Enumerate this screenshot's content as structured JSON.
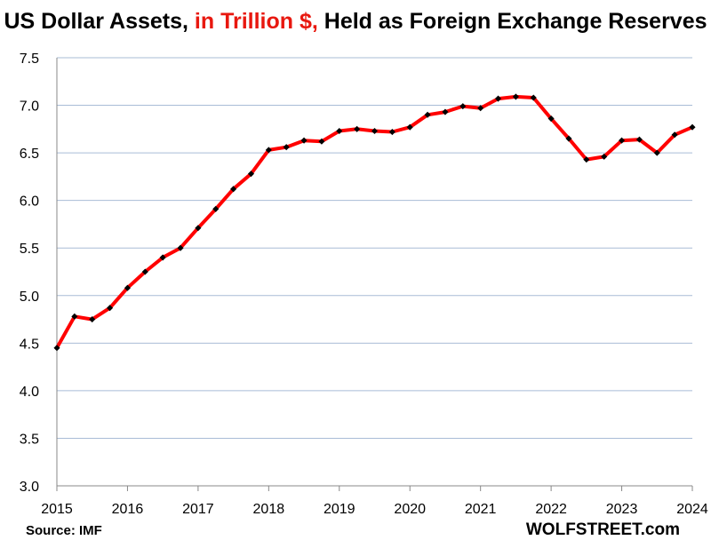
{
  "title": {
    "part1": "US Dollar Assets, ",
    "part2": "in Trillion $,",
    "part3": " Held as Foreign Exchange Reserves",
    "accent_color": "#e8180f"
  },
  "source": "Source: IMF",
  "brand": "WOLFSTREET.com",
  "chart_data": {
    "type": "line",
    "title": "US Dollar Assets, in Trillion $, Held as Foreign Exchange Reserves",
    "xlabel": "",
    "ylabel": "",
    "xlim": [
      2015,
      2024
    ],
    "ylim": [
      3.0,
      7.5
    ],
    "x_ticks": [
      "2015",
      "2016",
      "2017",
      "2018",
      "2019",
      "2020",
      "2021",
      "2022",
      "2023",
      "2024"
    ],
    "y_ticks": [
      "3.0",
      "3.5",
      "4.0",
      "4.5",
      "5.0",
      "5.5",
      "6.0",
      "6.5",
      "7.0",
      "7.5"
    ],
    "grid": "horizontal",
    "line_color": "#ff0000",
    "marker_color": "#000000",
    "series": [
      {
        "x": [
          2015.0,
          2015.25,
          2015.5,
          2015.75,
          2016.0,
          2016.25,
          2016.5,
          2016.75,
          2017.0,
          2017.25,
          2017.5,
          2017.75,
          2018.0,
          2018.25,
          2018.5,
          2018.75,
          2019.0,
          2019.25,
          2019.5,
          2019.75,
          2020.0,
          2020.25,
          2020.5,
          2020.75,
          2021.0,
          2021.25,
          2021.5,
          2021.75,
          2022.0,
          2022.25,
          2022.5,
          2022.75,
          2023.0,
          2023.25,
          2023.5,
          2023.75,
          2024.0
        ],
        "values": [
          4.45,
          4.78,
          4.75,
          4.87,
          5.08,
          5.25,
          5.4,
          5.5,
          5.71,
          5.91,
          6.12,
          6.28,
          6.53,
          6.56,
          6.63,
          6.62,
          6.73,
          6.75,
          6.73,
          6.72,
          6.77,
          6.9,
          6.93,
          6.99,
          6.97,
          7.07,
          7.09,
          7.08,
          6.86,
          6.65,
          6.43,
          6.46,
          6.63,
          6.64,
          6.5,
          6.69,
          6.77
        ]
      }
    ]
  }
}
